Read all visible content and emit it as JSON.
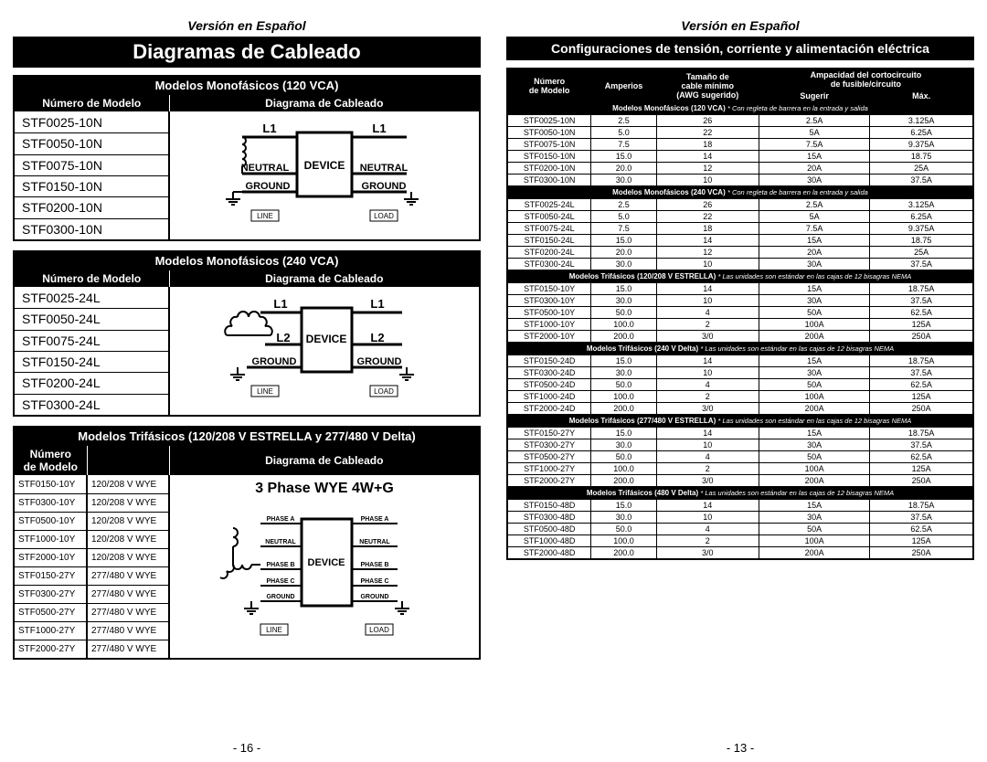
{
  "version_label": "Versión en Español",
  "left": {
    "title": "Diagramas de Cableado",
    "page_num": "- 16 -",
    "sections": [
      {
        "head": "Modelos Monofásicos (120 VCA)",
        "col1": "Número de Modelo",
        "col2": "Diagrama de Cableado",
        "models": [
          "STF0025-10N",
          "STF0050-10N",
          "STF0075-10N",
          "STF0150-10N",
          "STF0200-10N",
          "STF0300-10N"
        ],
        "diag": 1
      },
      {
        "head": "Modelos Monofásicos (240 VCA)",
        "col1": "Número de Modelo",
        "col2": "Diagrama de Cableado",
        "models": [
          "STF0025-24L",
          "STF0050-24L",
          "STF0075-24L",
          "STF0150-24L",
          "STF0200-24L",
          "STF0300-24L"
        ],
        "diag": 2
      },
      {
        "head": "Modelos Trifásicos (120/208 V ESTRELLA y 277/480 V Delta)",
        "col1": "Número\nde Modelo",
        "col2": "Diagrama de Cableado",
        "rows": [
          [
            "STF0150-10Y",
            "120/208 V WYE"
          ],
          [
            "STF0300-10Y",
            "120/208 V WYE"
          ],
          [
            "STF0500-10Y",
            "120/208 V WYE"
          ],
          [
            "STF1000-10Y",
            "120/208 V WYE"
          ],
          [
            "STF2000-10Y",
            "120/208 V WYE"
          ],
          [
            "STF0150-27Y",
            "277/480 V WYE"
          ],
          [
            "STF0300-27Y",
            "277/480 V WYE"
          ],
          [
            "STF0500-27Y",
            "277/480 V WYE"
          ],
          [
            "STF1000-27Y",
            "277/480 V WYE"
          ],
          [
            "STF2000-27Y",
            "277/480 V WYE"
          ]
        ],
        "diag": 3,
        "diag_title": "3 Phase WYE 4W+G"
      }
    ]
  },
  "right": {
    "title": "Configuraciones de tensión, corriente y alimentación eléctrica",
    "page_num": "- 13 -",
    "headers": {
      "c1": "Número\nde Modelo",
      "c2": "Amperios",
      "c3": "Tamaño de\ncable mínimo\n(AWG sugerido)",
      "c4": "Ampacidad del cortocircuito\nde fusible/circuito",
      "c4a": "Sugerir",
      "c4b": "Máx."
    },
    "groups": [
      {
        "label": "Modelos Monofásicos (120 VCA)",
        "note": "* Con regleta de barrera en la entrada y salida",
        "rows": [
          [
            "STF0025-10N",
            "2.5",
            "26",
            "2.5A",
            "3.125A"
          ],
          [
            "STF0050-10N",
            "5.0",
            "22",
            "5A",
            "6.25A"
          ],
          [
            "STF0075-10N",
            "7.5",
            "18",
            "7.5A",
            "9.375A"
          ],
          [
            "STF0150-10N",
            "15.0",
            "14",
            "15A",
            "18.75"
          ],
          [
            "STF0200-10N",
            "20.0",
            "12",
            "20A",
            "25A"
          ],
          [
            "STF0300-10N",
            "30.0",
            "10",
            "30A",
            "37.5A"
          ]
        ]
      },
      {
        "label": "Modelos Monofásicos (240 VCA)",
        "note": "* Con regleta de barrera en la entrada y salida",
        "rows": [
          [
            "STF0025-24L",
            "2.5",
            "26",
            "2.5A",
            "3.125A"
          ],
          [
            "STF0050-24L",
            "5.0",
            "22",
            "5A",
            "6.25A"
          ],
          [
            "STF0075-24L",
            "7.5",
            "18",
            "7.5A",
            "9.375A"
          ],
          [
            "STF0150-24L",
            "15.0",
            "14",
            "15A",
            "18.75"
          ],
          [
            "STF0200-24L",
            "20.0",
            "12",
            "20A",
            "25A"
          ],
          [
            "STF0300-24L",
            "30.0",
            "10",
            "30A",
            "37.5A"
          ]
        ]
      },
      {
        "label": "Modelos Trifásicos (120/208 V ESTRELLA)",
        "note": "* Las unidades son estándar en las cajas de 12 bisagras NEMA",
        "rows": [
          [
            "STF0150-10Y",
            "15.0",
            "14",
            "15A",
            "18.75A"
          ],
          [
            "STF0300-10Y",
            "30.0",
            "10",
            "30A",
            "37.5A"
          ],
          [
            "STF0500-10Y",
            "50.0",
            "4",
            "50A",
            "62.5A"
          ],
          [
            "STF1000-10Y",
            "100.0",
            "2",
            "100A",
            "125A"
          ],
          [
            "STF2000-10Y",
            "200.0",
            "3/0",
            "200A",
            "250A"
          ]
        ]
      },
      {
        "label": "Modelos Trifásicos (240 V Delta)",
        "note": "* Las unidades son estándar en las cajas de 12 bisagras NEMA",
        "rows": [
          [
            "STF0150-24D",
            "15.0",
            "14",
            "15A",
            "18.75A"
          ],
          [
            "STF0300-24D",
            "30.0",
            "10",
            "30A",
            "37.5A"
          ],
          [
            "STF0500-24D",
            "50.0",
            "4",
            "50A",
            "62.5A"
          ],
          [
            "STF1000-24D",
            "100.0",
            "2",
            "100A",
            "125A"
          ],
          [
            "STF2000-24D",
            "200.0",
            "3/0",
            "200A",
            "250A"
          ]
        ]
      },
      {
        "label": "Modelos Trifásicos (277/480 V ESTRELLA)",
        "note": "* Las unidades son estándar en las cajas de 12 bisagras NEMA",
        "rows": [
          [
            "STF0150-27Y",
            "15.0",
            "14",
            "15A",
            "18.75A"
          ],
          [
            "STF0300-27Y",
            "30.0",
            "10",
            "30A",
            "37.5A"
          ],
          [
            "STF0500-27Y",
            "50.0",
            "4",
            "50A",
            "62.5A"
          ],
          [
            "STF1000-27Y",
            "100.0",
            "2",
            "100A",
            "125A"
          ],
          [
            "STF2000-27Y",
            "200.0",
            "3/0",
            "200A",
            "250A"
          ]
        ]
      },
      {
        "label": "Modelos Trifásicos (480 V Delta)",
        "note": "* Las unidades son estándar en las cajas de 12 bisagras NEMA",
        "rows": [
          [
            "STF0150-48D",
            "15.0",
            "14",
            "15A",
            "18.75A"
          ],
          [
            "STF0300-48D",
            "30.0",
            "10",
            "30A",
            "37.5A"
          ],
          [
            "STF0500-48D",
            "50.0",
            "4",
            "50A",
            "62.5A"
          ],
          [
            "STF1000-48D",
            "100.0",
            "2",
            "100A",
            "125A"
          ],
          [
            "STF2000-48D",
            "200.0",
            "3/0",
            "200A",
            "250A"
          ]
        ]
      }
    ]
  }
}
